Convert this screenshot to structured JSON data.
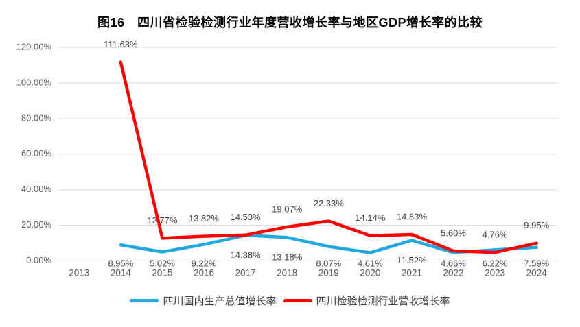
{
  "figure": {
    "title": "图16　四川省检验检测行业年度营收增长率与地区GDP增长率的比较"
  },
  "chart_data": {
    "type": "line",
    "title": "图16　四川省检验检测行业年度营收增长率与地区GDP增长率的比较",
    "categories": [
      "2013",
      "2014",
      "2015",
      "2016",
      "2017",
      "2018",
      "2019",
      "2020",
      "2021",
      "2022",
      "2023",
      "2024"
    ],
    "y_axis": {
      "min": 0,
      "max": 120,
      "tick_values": [
        0,
        20,
        40,
        60,
        80,
        100,
        120
      ],
      "tick_labels": [
        "0.00%",
        "20.00%",
        "40.00%",
        "60.00%",
        "80.00%",
        "100.00%",
        "120.00%"
      ]
    },
    "grid": true,
    "legend_position": "bottom",
    "series": [
      {
        "name": "四川国内生产总值增长率",
        "color": "#1FA8E1",
        "label_side": "below",
        "values": [
          null,
          8.95,
          5.02,
          9.22,
          14.38,
          13.18,
          8.07,
          4.61,
          11.52,
          4.66,
          6.22,
          7.59
        ],
        "labels": [
          null,
          "8.95%",
          "5.02%",
          "9.22%",
          "14.38%",
          "13.18%",
          "8.07%",
          "4.61%",
          "11.52%",
          "4.66%",
          "6.22%",
          "7.59%"
        ]
      },
      {
        "name": "四川检验检测行业营收增长率",
        "color": "#FE0000",
        "label_side": "above",
        "values": [
          null,
          111.63,
          12.77,
          13.82,
          14.53,
          19.07,
          22.33,
          14.14,
          14.83,
          5.6,
          4.76,
          9.95
        ],
        "labels": [
          null,
          "111.63%",
          "12.77%",
          "13.82%",
          "14.53%",
          "19.07%",
          "22.33%",
          "14.14%",
          "14.83%",
          "5.60%",
          "4.76%",
          "9.95%"
        ]
      }
    ]
  },
  "colors": {
    "background": "#FFFFFF",
    "gridline": "#D9D9D9",
    "axis_text": "#595959",
    "data_label_text": "#404040"
  }
}
